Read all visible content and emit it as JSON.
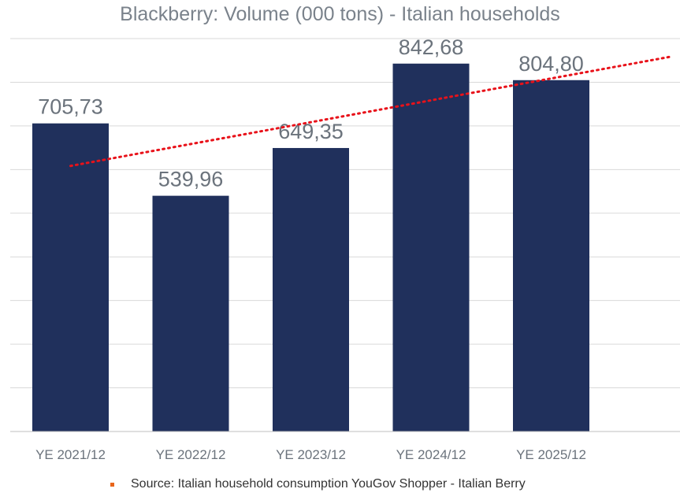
{
  "chart_data": {
    "type": "bar",
    "title": "Blackberry: Volume (000 tons) - Italian households",
    "categories": [
      "YE 2021/12",
      "YE 2022/12",
      "YE 2023/12",
      "YE 2024/12",
      "YE 2025/12"
    ],
    "values": [
      705.73,
      539.96,
      649.35,
      842.68,
      804.8
    ],
    "data_labels": [
      "705,73",
      "539,96",
      "649,35",
      "842,68",
      "804,80"
    ],
    "ylim": [
      0,
      900
    ],
    "grid": true,
    "trendline": {
      "type": "linear",
      "style": "dotted",
      "color": "#e8121a"
    },
    "colors": {
      "bar": "#20305c",
      "label": "#6b737c",
      "grid": "#d9d9d9",
      "tick": "#6b737c"
    }
  },
  "footer": {
    "source": "Source: Italian household consumption YouGov Shopper - Italian Berry",
    "bullet_color": "#e8651a"
  }
}
